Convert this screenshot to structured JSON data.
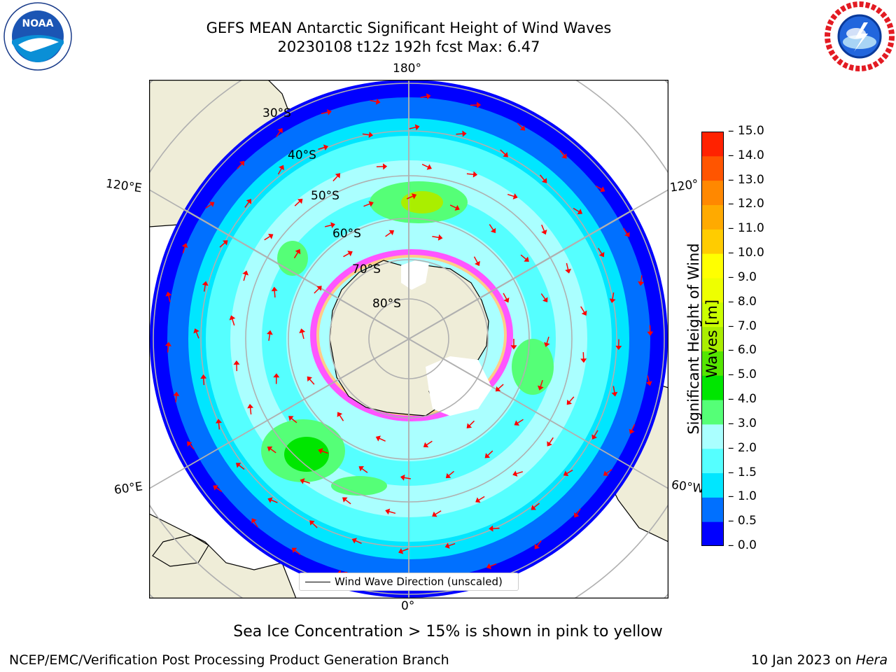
{
  "title": {
    "line1": "GEFS MEAN Antarctic Significant Height of Wind Waves",
    "line2": "20230108 t12z 192h fcst   Max: 6.47"
  },
  "logos": {
    "left": {
      "text": "NOAA",
      "ring": "NATIONAL OCEANIC AND ATMOSPHERIC ADMINISTRATION · U.S. DEPARTMENT OF COMMERCE"
    },
    "right": {
      "ring": "NATIONAL WEATHER SERVICE"
    }
  },
  "map": {
    "projection": "south polar stereographic",
    "lon_labels": {
      "top": "180°",
      "bottom": "0°",
      "left_upper": "120°E",
      "left_lower": "60°E",
      "right_upper": "120°",
      "right_lower": "60°W"
    },
    "lat_labels": [
      "30°S",
      "40°S",
      "50°S",
      "60°S",
      "70°S",
      "80°S"
    ],
    "legend": "Wind Wave Direction (unscaled)",
    "colors": {
      "land": "#efedd8",
      "ice": "#ffffff",
      "arrow": "#ff0000",
      "grid": "#b0b0b0"
    }
  },
  "colorbar": {
    "label": "Significant Height of Wind Waves [m]",
    "ticks": [
      "0.0",
      "0.5",
      "1.0",
      "1.5",
      "2.0",
      "3.0",
      "4.0",
      "5.0",
      "6.0",
      "7.0",
      "8.0",
      "9.0",
      "10.0",
      "11.0",
      "12.0",
      "13.0",
      "14.0",
      "15.0"
    ],
    "colors": [
      "#0000ff",
      "#0070ff",
      "#00e6ff",
      "#55ffff",
      "#aaffff",
      "#55ff77",
      "#00e600",
      "#55e600",
      "#aaee00",
      "#ccff00",
      "#eeff00",
      "#ffff00",
      "#ffcc00",
      "#ffaa00",
      "#ff8800",
      "#ff5500",
      "#ff2200"
    ]
  },
  "footer": {
    "caption": "Sea Ice Concentration > 15% is shown in pink to yellow",
    "left": "NCEP/EMC/Verification Post Processing Product Generation Branch",
    "right_date": "10 Jan 2023 on ",
    "right_machine": "Hera"
  }
}
